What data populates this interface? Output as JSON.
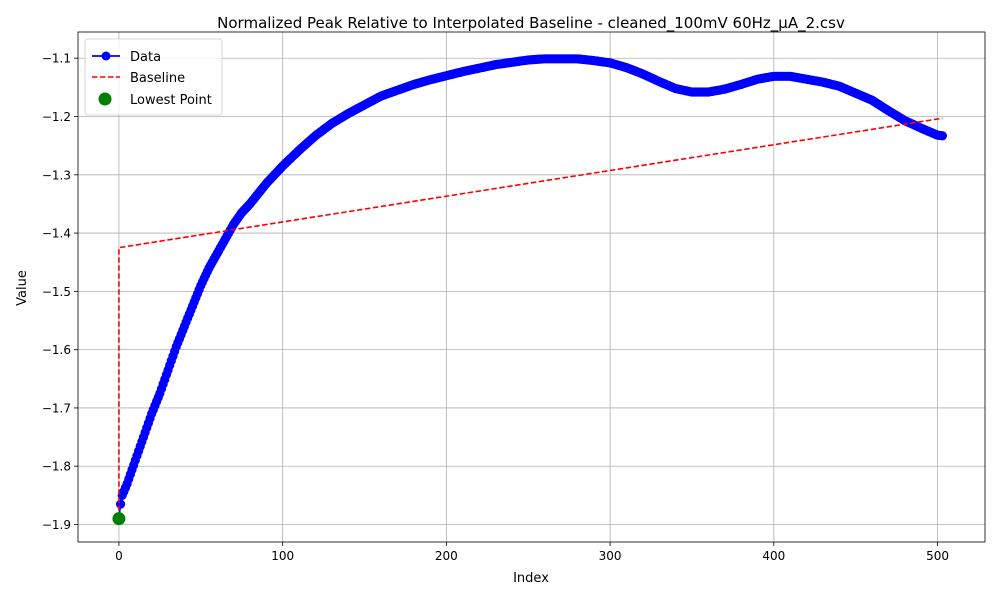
{
  "colors": {
    "data": "#0000ff",
    "baseline": "#ff0000",
    "lowest": "#008000",
    "grid": "#b0b0b0"
  },
  "chart_data": {
    "type": "line",
    "title": "Normalized Peak Relative to Interpolated Baseline - cleaned_100mV 60Hz_μA_2.csv",
    "xlabel": "Index",
    "ylabel": "Value",
    "xlim": [
      -25,
      529
    ],
    "ylim": [
      -1.93,
      -1.055
    ],
    "xticks": [
      0,
      100,
      200,
      300,
      400,
      500
    ],
    "xtick_labels": [
      "0",
      "100",
      "200",
      "300",
      "400",
      "500"
    ],
    "yticks": [
      -1.9,
      -1.8,
      -1.7,
      -1.6,
      -1.5,
      -1.4,
      -1.3,
      -1.2,
      -1.1
    ],
    "ytick_labels": [
      "−1.9",
      "−1.8",
      "−1.7",
      "−1.6",
      "−1.5",
      "−1.4",
      "−1.3",
      "−1.2",
      "−1.1"
    ],
    "grid": true,
    "legend_position": "upper-left",
    "data_series": {
      "name": "Data",
      "x_start": 0,
      "x_end": 503,
      "anchors": [
        [
          0,
          -1.89
        ],
        [
          1,
          -1.865
        ],
        [
          2,
          -1.85
        ],
        [
          5,
          -1.83
        ],
        [
          10,
          -1.79
        ],
        [
          15,
          -1.75
        ],
        [
          20,
          -1.71
        ],
        [
          25,
          -1.675
        ],
        [
          30,
          -1.635
        ],
        [
          35,
          -1.595
        ],
        [
          40,
          -1.56
        ],
        [
          45,
          -1.525
        ],
        [
          50,
          -1.49
        ],
        [
          55,
          -1.46
        ],
        [
          60,
          -1.435
        ],
        [
          65,
          -1.41
        ],
        [
          70,
          -1.385
        ],
        [
          75,
          -1.365
        ],
        [
          80,
          -1.35
        ],
        [
          90,
          -1.315
        ],
        [
          100,
          -1.285
        ],
        [
          110,
          -1.258
        ],
        [
          120,
          -1.233
        ],
        [
          130,
          -1.212
        ],
        [
          140,
          -1.195
        ],
        [
          150,
          -1.18
        ],
        [
          160,
          -1.165
        ],
        [
          170,
          -1.155
        ],
        [
          180,
          -1.145
        ],
        [
          190,
          -1.137
        ],
        [
          200,
          -1.13
        ],
        [
          210,
          -1.123
        ],
        [
          220,
          -1.117
        ],
        [
          230,
          -1.111
        ],
        [
          240,
          -1.107
        ],
        [
          250,
          -1.103
        ],
        [
          260,
          -1.101
        ],
        [
          270,
          -1.101
        ],
        [
          280,
          -1.101
        ],
        [
          290,
          -1.104
        ],
        [
          300,
          -1.108
        ],
        [
          310,
          -1.116
        ],
        [
          320,
          -1.127
        ],
        [
          330,
          -1.14
        ],
        [
          340,
          -1.152
        ],
        [
          350,
          -1.158
        ],
        [
          360,
          -1.158
        ],
        [
          370,
          -1.153
        ],
        [
          380,
          -1.145
        ],
        [
          390,
          -1.136
        ],
        [
          400,
          -1.131
        ],
        [
          410,
          -1.131
        ],
        [
          420,
          -1.136
        ],
        [
          430,
          -1.141
        ],
        [
          440,
          -1.148
        ],
        [
          450,
          -1.16
        ],
        [
          460,
          -1.172
        ],
        [
          470,
          -1.19
        ],
        [
          480,
          -1.207
        ],
        [
          490,
          -1.22
        ],
        [
          500,
          -1.232
        ],
        [
          503,
          -1.233
        ]
      ]
    },
    "baseline_series": {
      "name": "Baseline",
      "points": [
        [
          0,
          -1.89
        ],
        [
          0,
          -1.425
        ],
        [
          503,
          -1.203
        ]
      ]
    },
    "lowest_point": {
      "name": "Lowest Point",
      "x": 0,
      "y": -1.89
    },
    "legend": [
      "Data",
      "Baseline",
      "Lowest Point"
    ]
  }
}
